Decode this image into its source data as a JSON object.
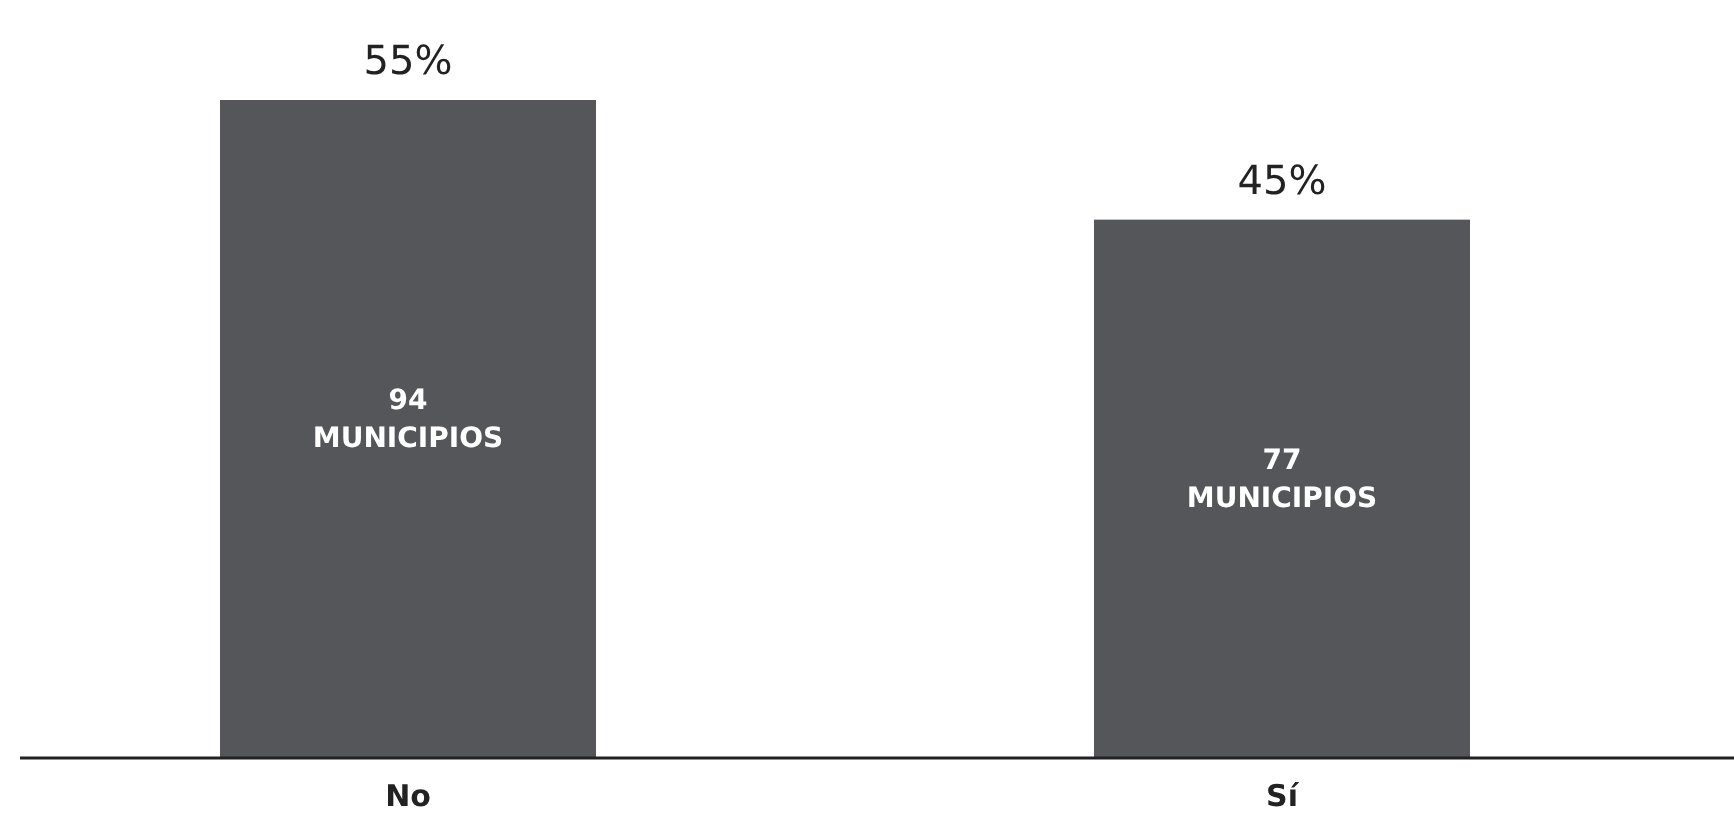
{
  "chart_data": {
    "type": "bar",
    "categories": [
      "No",
      "Sí"
    ],
    "values": [
      55,
      45
    ],
    "value_labels": [
      "55%",
      "45%"
    ],
    "color": "#54565a",
    "annotations": [
      "94 MUNICIPIOS",
      "77 MUNICIPIOS"
    ]
  }
}
